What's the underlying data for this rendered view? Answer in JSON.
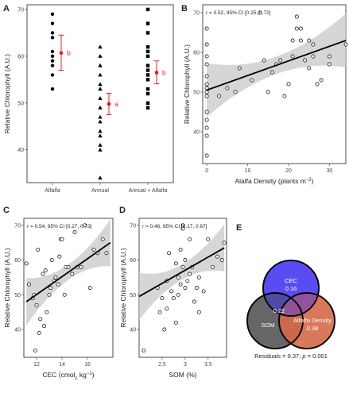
{
  "colors": {
    "accent": "#d62728",
    "band": "#c8c8c8",
    "ink": "#000000",
    "cec": "#4b3cf2",
    "som": "#4d4d4d",
    "alfalfa": "#d46a4a"
  },
  "chart_data": [
    {
      "panel": "A",
      "type": "scatter",
      "ylabel": "Relative Chlorophyll (A.U.)",
      "xlabel": "",
      "ylim": [
        33,
        71
      ],
      "yticks": [
        40,
        50,
        60,
        70
      ],
      "categories": [
        "Alfalfa",
        "Annual",
        "Annual + Alfalfa"
      ],
      "series": [
        {
          "category": "Alfalfa",
          "marker": "circle",
          "values": [
            69,
            67,
            65,
            64,
            61,
            60,
            59,
            58,
            56,
            53
          ]
        },
        {
          "category": "Annual",
          "marker": "triangle",
          "values": [
            62,
            60,
            58,
            56,
            54,
            53,
            51,
            49,
            47,
            46,
            44,
            43,
            41,
            40,
            34
          ]
        },
        {
          "category": "Annual + Alfalfa",
          "marker": "square",
          "values": [
            70,
            67,
            65,
            62,
            61,
            60,
            58,
            57,
            56,
            55,
            53,
            52,
            50,
            49
          ]
        }
      ],
      "means": [
        {
          "category": "Alfalfa",
          "mean": 60.7,
          "low": 57.0,
          "high": 64.5,
          "label": "b"
        },
        {
          "category": "Annual",
          "mean": 49.8,
          "low": 47.5,
          "high": 52.1,
          "label": "a"
        },
        {
          "category": "Annual + Alfalfa",
          "mean": 56.5,
          "low": 54.1,
          "high": 59.0,
          "label": "b"
        }
      ]
    },
    {
      "panel": "B",
      "type": "scatter",
      "annotation": "r = 0.52, 95% CI [0.25, 0.72]",
      "xlabel": "Alalfa Density (plants m",
      "xlabel_sup": "−2",
      "xlabel_close": ")",
      "ylabel": "Relative Chlorophyll (A.U.)",
      "xlim": [
        -1,
        34
      ],
      "ylim": [
        32,
        72
      ],
      "xticks": [
        0,
        10,
        20,
        30
      ],
      "yticks": [
        40,
        50,
        60,
        70
      ],
      "fit": {
        "x": [
          0,
          34
        ],
        "y": [
          50.5,
          63.0
        ]
      },
      "points": [
        [
          0,
          34
        ],
        [
          0,
          39
        ],
        [
          0,
          41
        ],
        [
          0,
          43
        ],
        [
          0,
          45
        ],
        [
          0,
          49
        ],
        [
          0,
          50
        ],
        [
          0,
          51
        ],
        [
          0,
          52
        ],
        [
          0,
          54
        ],
        [
          0,
          57
        ],
        [
          0,
          59
        ],
        [
          0,
          62
        ],
        [
          0,
          66
        ],
        [
          3,
          49
        ],
        [
          5,
          51
        ],
        [
          7,
          50
        ],
        [
          8,
          56
        ],
        [
          11,
          53
        ],
        [
          13,
          70
        ],
        [
          14,
          58
        ],
        [
          15,
          50
        ],
        [
          16,
          55
        ],
        [
          17,
          57
        ],
        [
          18,
          58
        ],
        [
          19,
          49
        ],
        [
          20,
          52
        ],
        [
          21,
          59
        ],
        [
          21,
          63
        ],
        [
          22,
          66
        ],
        [
          22,
          69
        ],
        [
          23,
          63
        ],
        [
          23,
          66
        ],
        [
          24,
          58
        ],
        [
          25,
          56
        ],
        [
          25,
          63
        ],
        [
          26,
          59
        ],
        [
          26,
          62
        ],
        [
          27,
          52
        ],
        [
          28,
          53
        ],
        [
          30,
          57
        ],
        [
          30,
          59
        ],
        [
          34,
          62
        ]
      ]
    },
    {
      "panel": "C",
      "type": "scatter",
      "annotation": "r = 0.54, 95% CI [0.27, 0.73]",
      "xlabel": "CEC (cmol",
      "xlabel_sub": "c",
      "xlabel_rest": " kg",
      "xlabel_sup": "−1",
      "xlabel_close": ")",
      "ylabel": "Relative Chlorophyll (A.U.)",
      "xlim": [
        11,
        18
      ],
      "ylim": [
        32,
        72
      ],
      "xticks": [
        12,
        14,
        16
      ],
      "yticks": [
        40,
        50,
        60,
        70
      ],
      "fit": {
        "x": [
          11.2,
          17.8
        ],
        "y": [
          48.0,
          65.0
        ]
      },
      "points": [
        [
          11.2,
          59
        ],
        [
          11.4,
          53
        ],
        [
          11.7,
          49
        ],
        [
          11.8,
          50
        ],
        [
          11.9,
          34
        ],
        [
          12.0,
          47
        ],
        [
          12.1,
          63
        ],
        [
          12.2,
          39
        ],
        [
          12.3,
          43
        ],
        [
          12.5,
          56
        ],
        [
          12.6,
          41
        ],
        [
          12.7,
          57
        ],
        [
          12.8,
          45
        ],
        [
          13.0,
          50
        ],
        [
          13.1,
          52
        ],
        [
          13.2,
          60
        ],
        [
          13.4,
          54
        ],
        [
          13.5,
          55
        ],
        [
          13.7,
          53
        ],
        [
          13.8,
          61
        ],
        [
          13.9,
          66
        ],
        [
          14.0,
          66
        ],
        [
          14.2,
          50
        ],
        [
          14.3,
          58
        ],
        [
          14.5,
          58
        ],
        [
          14.8,
          56
        ],
        [
          15.0,
          68
        ],
        [
          15.2,
          58
        ],
        [
          15.5,
          58
        ],
        [
          15.8,
          70
        ],
        [
          16.2,
          52
        ],
        [
          16.5,
          63
        ],
        [
          16.8,
          62
        ],
        [
          17.2,
          66
        ],
        [
          17.5,
          62
        ]
      ]
    },
    {
      "panel": "D",
      "type": "scatter",
      "annotation": "r = 0.46, 95% CI [0.17, 0.67]",
      "xlabel": "SOM (%)",
      "ylabel": "Relative Chlorophyll (A.U.)",
      "xlim": [
        2.0,
        3.9
      ],
      "ylim": [
        32,
        72
      ],
      "xticks": [
        2.5,
        3.0,
        3.5
      ],
      "yticks": [
        40,
        50,
        60,
        70
      ],
      "fit": {
        "x": [
          2.0,
          3.85
        ],
        "y": [
          49.5,
          63.5
        ]
      },
      "points": [
        [
          2.1,
          34
        ],
        [
          2.4,
          52
        ],
        [
          2.45,
          45
        ],
        [
          2.5,
          49
        ],
        [
          2.55,
          40
        ],
        [
          2.6,
          54
        ],
        [
          2.6,
          46
        ],
        [
          2.65,
          62
        ],
        [
          2.7,
          51
        ],
        [
          2.75,
          49
        ],
        [
          2.8,
          59
        ],
        [
          2.8,
          42
        ],
        [
          2.85,
          55
        ],
        [
          2.85,
          50
        ],
        [
          2.9,
          53
        ],
        [
          2.9,
          63
        ],
        [
          2.95,
          70
        ],
        [
          2.95,
          69
        ],
        [
          2.95,
          58
        ],
        [
          3.0,
          52
        ],
        [
          3.0,
          60
        ],
        [
          3.05,
          54
        ],
        [
          3.1,
          66
        ],
        [
          3.1,
          56
        ],
        [
          3.15,
          58
        ],
        [
          3.2,
          48
        ],
        [
          3.25,
          52
        ],
        [
          3.3,
          55
        ],
        [
          3.3,
          45
        ],
        [
          3.4,
          51
        ],
        [
          3.5,
          66
        ],
        [
          3.6,
          58
        ],
        [
          3.7,
          61
        ],
        [
          3.8,
          60
        ],
        [
          3.85,
          65
        ]
      ]
    }
  ],
  "venn": {
    "panel": "E",
    "sets": [
      {
        "label": "CEC",
        "value": "0.16"
      },
      {
        "label": "SOM",
        "value": ""
      },
      {
        "label": "Alfalfa Density",
        "value": "0.38"
      }
    ],
    "overlap": "0.22",
    "residuals": "Residuals = 0.37; ",
    "p_label": "p",
    "p_value": " = 0.001"
  }
}
